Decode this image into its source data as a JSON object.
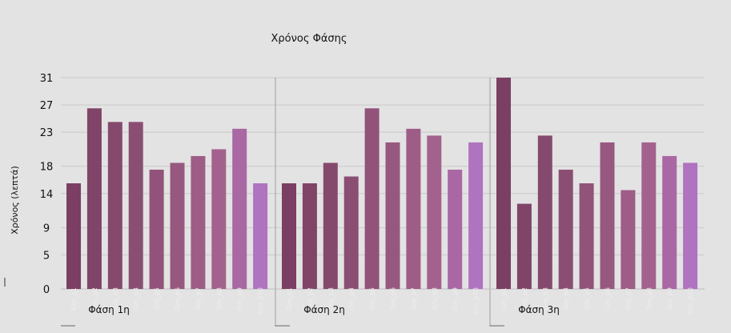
{
  "chart_data": {
    "type": "bar",
    "title": "Χρόνος Φάσης",
    "ylabel": "Χρόνος (λεπτά)",
    "yticks": [
      0,
      5,
      9,
      14,
      18,
      23,
      27,
      31
    ],
    "ylim": [
      0,
      31
    ],
    "grid": true,
    "legend": "none",
    "groups": [
      {
        "label": "Φάση 1η",
        "categories": [
          "Gro_p1",
          "Gro_p2",
          "Gro_p3",
          "Gro_p4",
          "Gro_p5",
          "Gro_p6",
          "Gro_p7",
          "Gro_p8",
          "Gro_p9",
          "Gro_p10"
        ],
        "values": [
          15.5,
          26.5,
          24.5,
          24.5,
          17.5,
          18.5,
          19.5,
          20.5,
          23.5,
          15.5
        ]
      },
      {
        "label": "Φάση 2η",
        "categories": [
          "Gro_p1",
          "Gro_p2",
          "Gro_p3",
          "Gro_p4",
          "Gro_p5",
          "Gro_p6",
          "Gro_p7",
          "Gro_p8",
          "Gro_p9",
          "Gro_p10"
        ],
        "values": [
          15.5,
          15.5,
          18.5,
          16.5,
          26.5,
          21.5,
          23.5,
          22.5,
          17.5,
          21.5
        ]
      },
      {
        "label": "Φάση 3η",
        "categories": [
          "Gro_p1",
          "Gro_p2",
          "Gro_p3",
          "Gro_p4",
          "Gro_p5",
          "Gro_p6",
          "Gro_p7",
          "Gro_p8",
          "Gro_p9",
          "Gro_p10"
        ],
        "values": [
          31,
          12.5,
          22.5,
          17.5,
          15.5,
          21.5,
          14.5,
          21.5,
          19.5,
          18.5
        ]
      }
    ],
    "colors": [
      "#7b3f63",
      "#7f4468",
      "#85496d",
      "#8b4e73",
      "#915379",
      "#97587f",
      "#9d5d86",
      "#a3628d",
      "#a967a4",
      "#af73c0"
    ]
  }
}
